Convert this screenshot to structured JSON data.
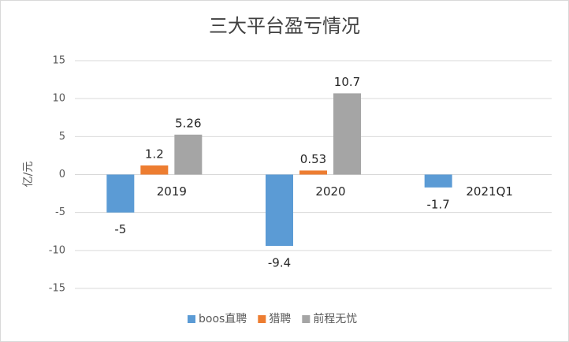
{
  "chart_data": {
    "type": "bar",
    "title": "三大平台盈亏情况",
    "y_label": "亿/元",
    "categories": [
      "2019",
      "2020",
      "2021Q1"
    ],
    "series": [
      {
        "name": "boos直聘",
        "color": "#5b9bd5",
        "values": [
          -5,
          -9.4,
          -1.7
        ]
      },
      {
        "name": "猎聘",
        "color": "#ed7d31",
        "values": [
          1.2,
          0.53,
          null
        ]
      },
      {
        "name": "前程无忧",
        "color": "#a5a5a5",
        "values": [
          5.26,
          10.7,
          null
        ]
      }
    ],
    "ylim": [
      -15,
      15
    ],
    "yticks": [
      -15,
      -10,
      -5,
      0,
      5,
      10,
      15
    ],
    "grid": true,
    "legend": "bottom"
  }
}
